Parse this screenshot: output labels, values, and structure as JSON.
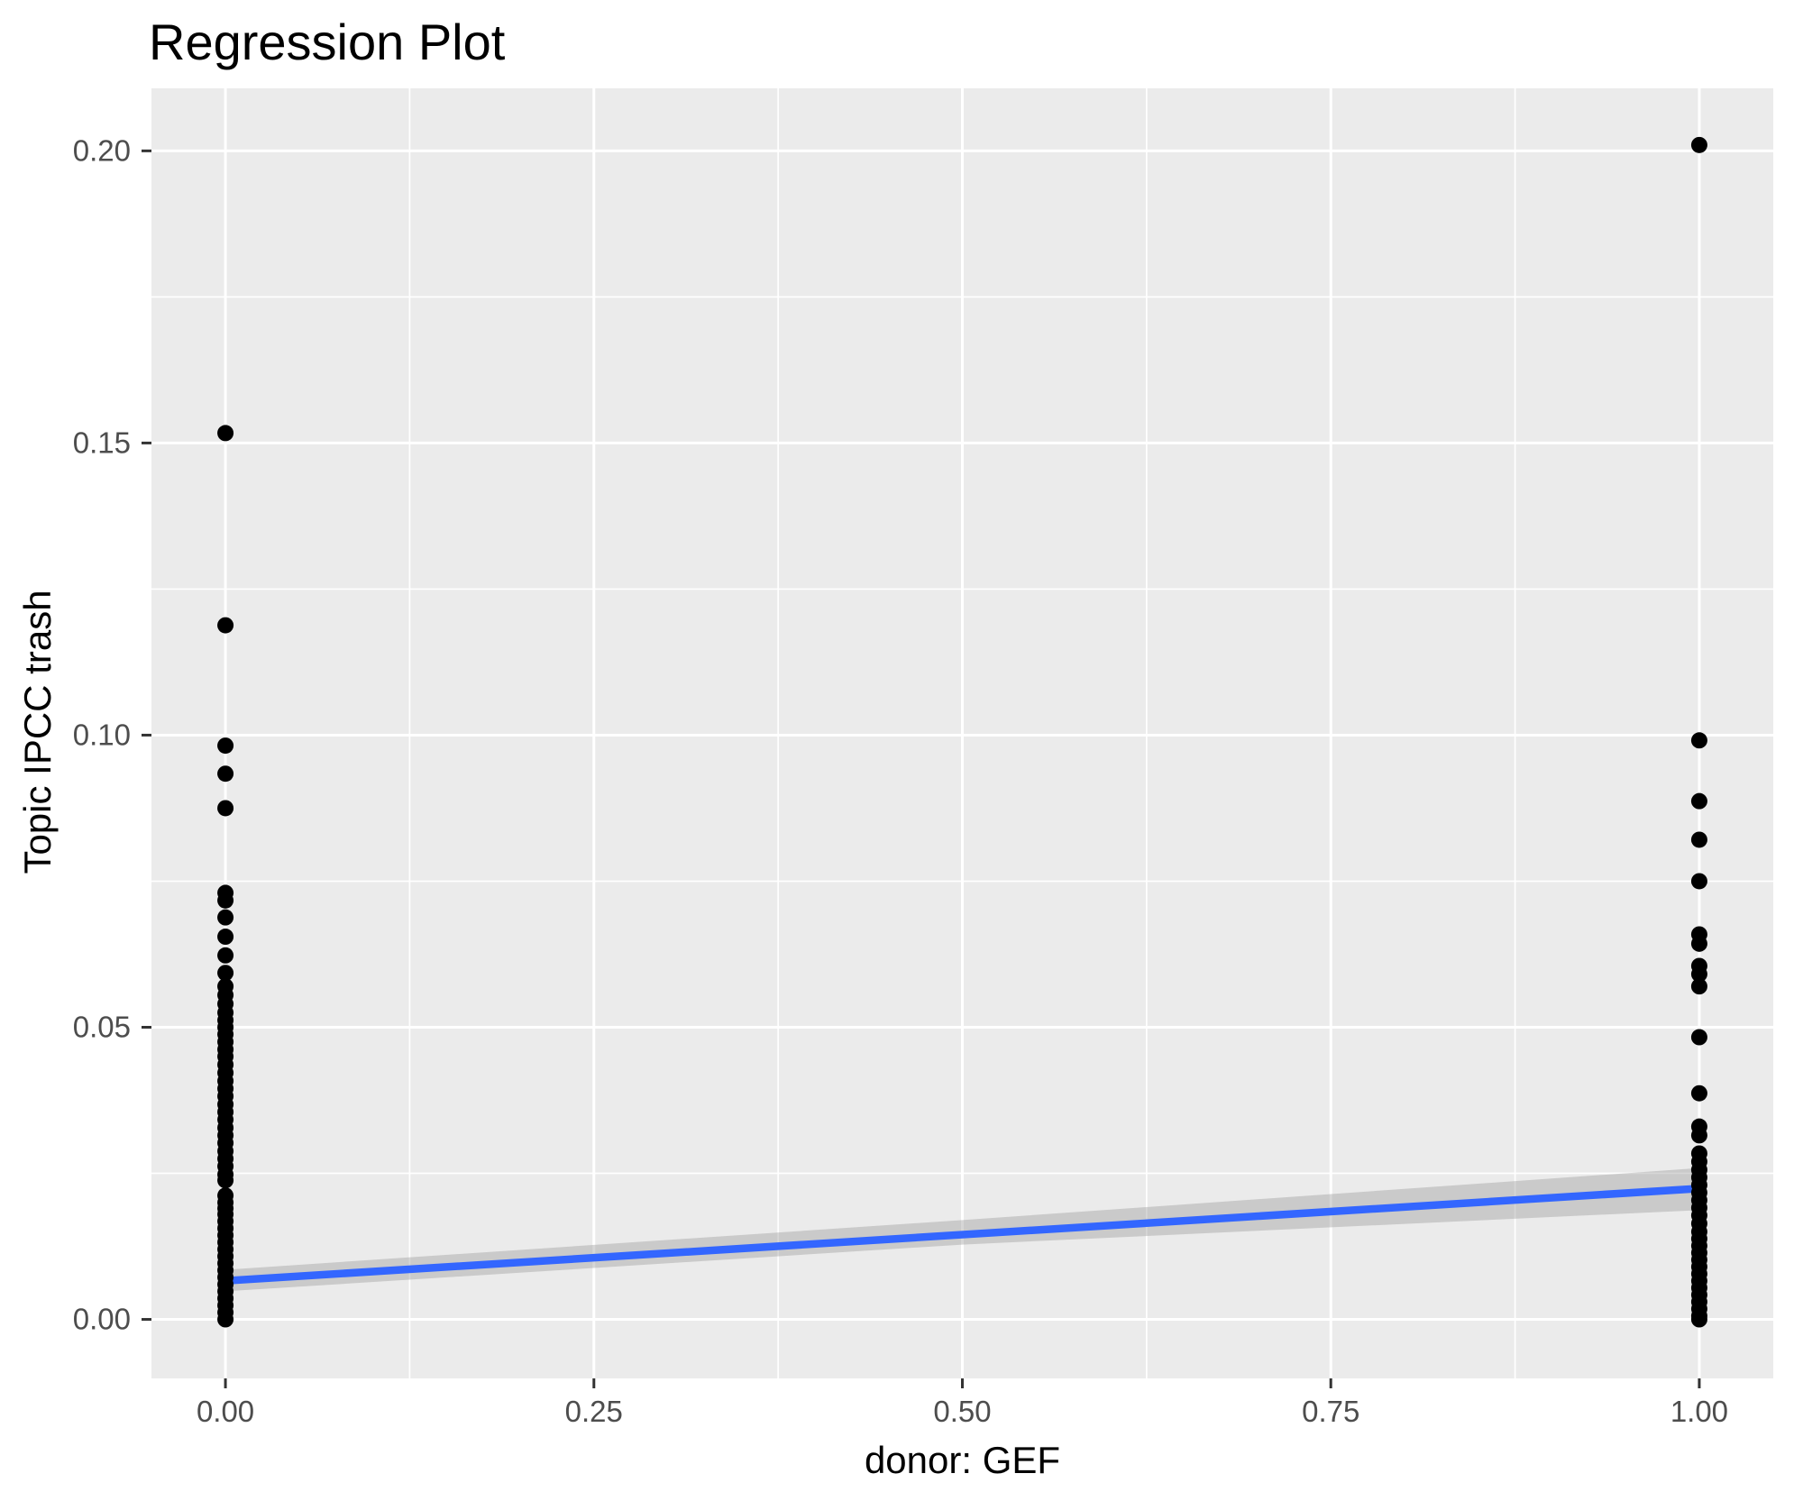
{
  "title": "Regression Plot",
  "chart_data": {
    "type": "scatter",
    "title": "Regression Plot",
    "xlabel": "donor: GEF",
    "ylabel": "Topic IPCC trash",
    "xlim": [
      -0.0502,
      1.0502
    ],
    "ylim": [
      -0.0101,
      0.2107
    ],
    "x_ticks": [
      0.0,
      0.25,
      0.5,
      0.75,
      1.0
    ],
    "x_tick_labels": [
      "0.00",
      "0.25",
      "0.50",
      "0.75",
      "1.00"
    ],
    "x_minor_ticks": [
      0.125,
      0.375,
      0.625,
      0.875
    ],
    "y_ticks": [
      0.0,
      0.05,
      0.1,
      0.15,
      0.2
    ],
    "y_tick_labels": [
      "0.00",
      "0.05",
      "0.10",
      "0.15",
      "0.20"
    ],
    "y_minor_ticks": [
      0.025,
      0.075,
      0.125,
      0.175
    ],
    "grid": true,
    "legend": false,
    "groups": [
      {
        "x": 0,
        "y": [
          0.1517,
          0.1188,
          0.0982,
          0.0934,
          0.0875,
          0.073,
          0.0717,
          0.0688,
          0.0655,
          0.0623,
          0.0593,
          0.057,
          0.0555,
          0.054,
          0.0525,
          0.0512,
          0.05,
          0.0488,
          0.0475,
          0.0462,
          0.045,
          0.0436,
          0.0422,
          0.0408,
          0.0395,
          0.0382,
          0.0368,
          0.0355,
          0.0342,
          0.0328,
          0.0315,
          0.0302,
          0.0288,
          0.0275,
          0.0262,
          0.0248,
          0.0238,
          0.0212,
          0.02,
          0.019,
          0.018,
          0.0168,
          0.0156,
          0.0144,
          0.0132,
          0.012,
          0.0108,
          0.0096,
          0.0084,
          0.0072,
          0.006,
          0.0048,
          0.0036,
          0.0024,
          0.0012,
          0.0
        ]
      },
      {
        "x": 1,
        "y": [
          0.201,
          0.0991,
          0.0887,
          0.0821,
          0.075,
          0.0659,
          0.0643,
          0.0605,
          0.0591,
          0.057,
          0.0483,
          0.0387,
          0.033,
          0.0315,
          0.0284,
          0.027,
          0.0256,
          0.0243,
          0.023,
          0.0217,
          0.0204,
          0.0191,
          0.0178,
          0.0164,
          0.015,
          0.0138,
          0.0126,
          0.0114,
          0.0102,
          0.009,
          0.0078,
          0.0066,
          0.0054,
          0.0042,
          0.003,
          0.0018,
          0.0006,
          0.0
        ]
      }
    ],
    "regression_line": {
      "x": [
        0,
        1
      ],
      "y": [
        0.0066,
        0.0224
      ]
    },
    "confidence_band": {
      "x": [
        0,
        0.5,
        1
      ],
      "upper": [
        0.0085,
        0.017,
        0.0259
      ],
      "lower": [
        0.0048,
        0.0128,
        0.0187
      ]
    },
    "style": {
      "panel_bg": "#EBEBEB",
      "grid_color": "#FFFFFF",
      "point_color": "#000000",
      "point_radius": 9,
      "line_color": "#3366FF",
      "line_width": 8.5,
      "band_fill": "rgba(153,153,153,0.4)",
      "tick_color": "#333333",
      "tick_label_color": "#4D4D4D",
      "tick_label_size": 33
    }
  }
}
